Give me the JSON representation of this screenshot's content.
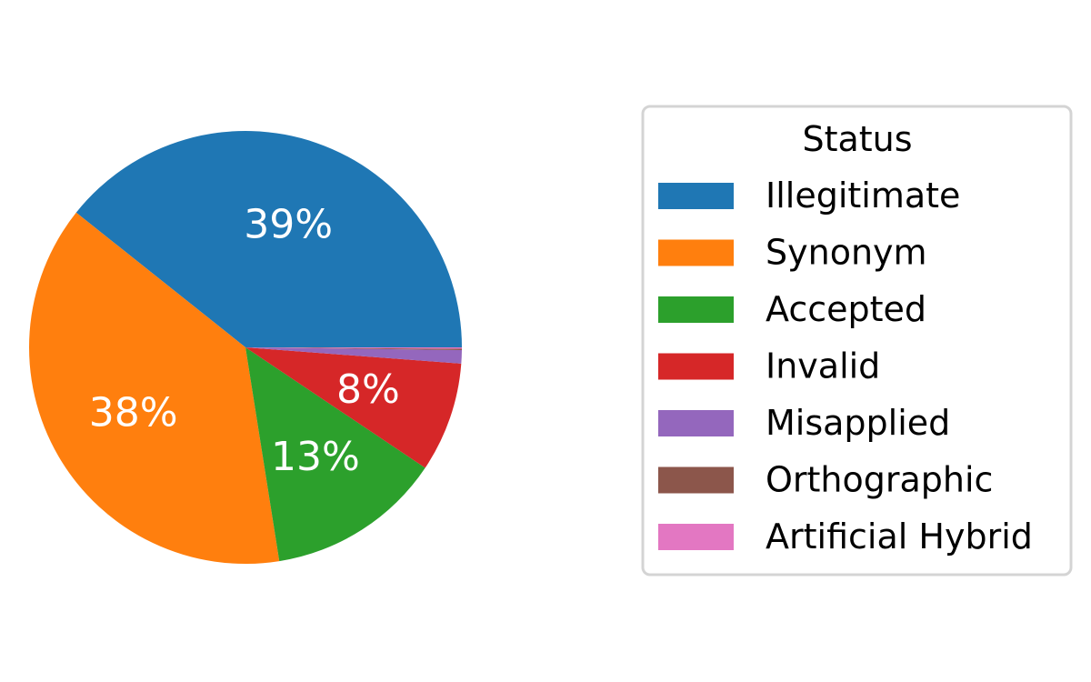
{
  "chart_data": {
    "type": "pie",
    "categories": [
      "Illegitimate",
      "Synonym",
      "Accepted",
      "Invalid",
      "Misapplied",
      "Orthographic",
      "Artificial Hybrid"
    ],
    "values": [
      39.3,
      38.2,
      13.1,
      8.2,
      1.0,
      0.1,
      0.1
    ],
    "data_labels": [
      "39%",
      "38%",
      "13%",
      "8%",
      "",
      "",
      ""
    ],
    "colors": [
      "#1f77b4",
      "#ff7f0e",
      "#2ca02c",
      "#d62728",
      "#9467bd",
      "#8c564b",
      "#e377c2"
    ],
    "start_angle_deg": 0,
    "direction": "counterclockwise",
    "legend": {
      "title": "Status",
      "placement": "right"
    }
  }
}
